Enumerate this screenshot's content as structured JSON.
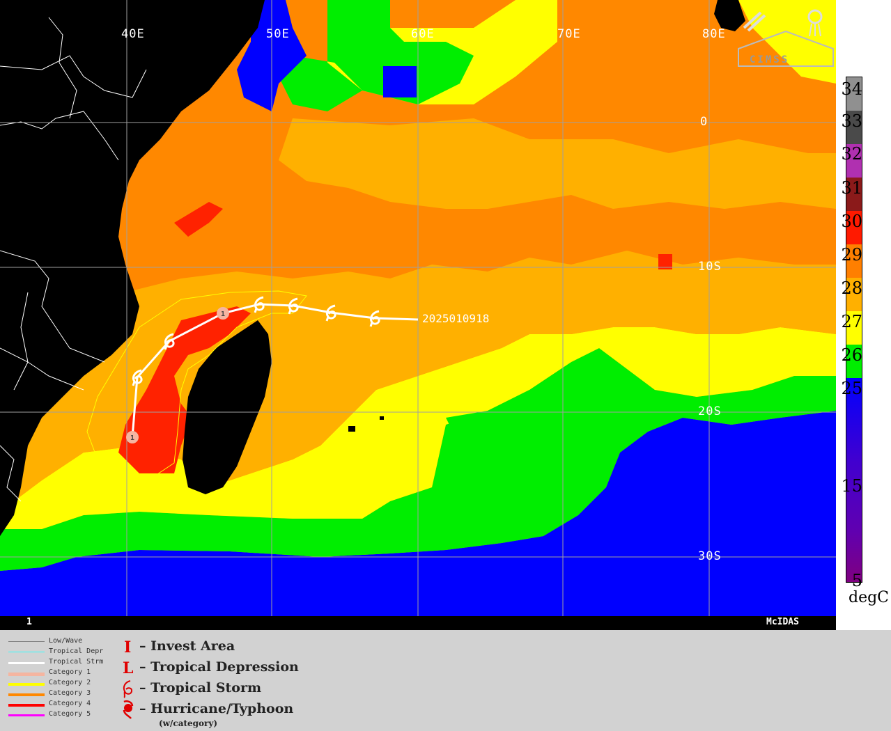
{
  "map": {
    "lon_labels": [
      "40E",
      "50E",
      "60E",
      "70E",
      "80E"
    ],
    "lat_labels": [
      "0",
      "10S",
      "20S",
      "30S"
    ],
    "frame_number": "1",
    "software_label": "McIDAS",
    "logo_text": "CIMSS",
    "track_label": "2025010918",
    "track_markers": [
      {
        "type": "tropical-storm"
      },
      {
        "type": "tropical-storm"
      },
      {
        "type": "tropical-storm"
      },
      {
        "type": "tropical-storm"
      },
      {
        "type": "hurricane",
        "category": "1"
      },
      {
        "type": "tropical-storm"
      },
      {
        "type": "tropical-storm"
      },
      {
        "type": "hurricane",
        "category": "1"
      }
    ],
    "colors": {
      "ocean_lt25": "#0000ff",
      "c25_26": "#00ee00",
      "c26_27": "#ffff00",
      "c27_28": "#ffb000",
      "c28_29": "#ff8800",
      "c29_30": "#ff2200",
      "land": "#000000",
      "grid": "#a0a0a0",
      "track": "#ffffff"
    }
  },
  "colorbar": {
    "labels": [
      "34",
      "33",
      "32",
      "31",
      "30",
      "29",
      "28",
      "27",
      "26",
      "25",
      "15",
      "5"
    ],
    "units": "degC"
  },
  "legend": {
    "lines": [
      {
        "label": "Low/Wave",
        "color": "#808080"
      },
      {
        "label": "Tropical Depr",
        "color": "#33ffff"
      },
      {
        "label": "Tropical Strm",
        "color": "#ffffff"
      },
      {
        "label": "Category 1",
        "color": "#f5b5a0"
      },
      {
        "label": "Category 2",
        "color": "#ffff00"
      },
      {
        "label": "Category 3",
        "color": "#ff8800"
      },
      {
        "label": "Category 4",
        "color": "#ff0000"
      },
      {
        "label": "Category 5",
        "color": "#ff00ff"
      }
    ],
    "symbols": [
      {
        "label": "– Invest Area",
        "glyph": "I"
      },
      {
        "label": "– Tropical Depression",
        "glyph": "L"
      },
      {
        "label": "– Tropical Storm",
        "glyph": "6"
      },
      {
        "label": "– Hurricane/Typhoon",
        "glyph": "9"
      }
    ],
    "note": "(w/category)"
  }
}
